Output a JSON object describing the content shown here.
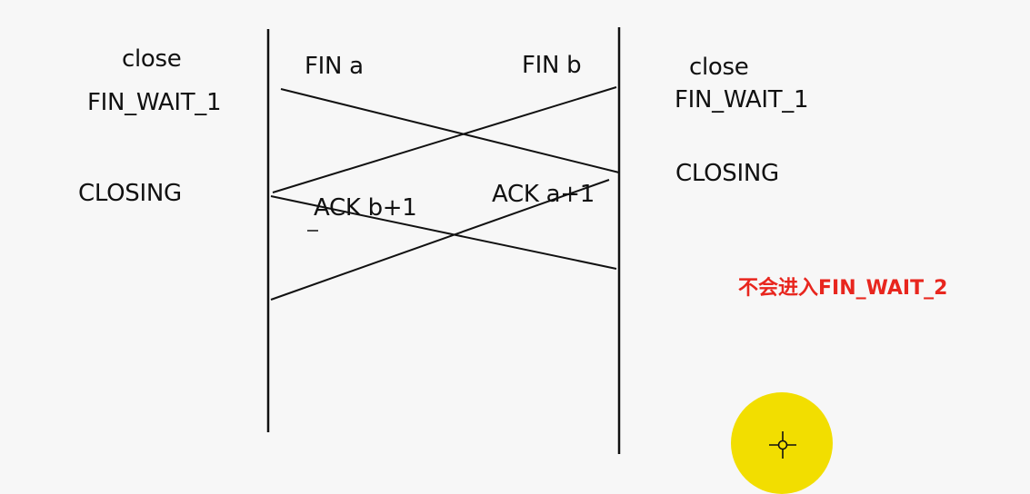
{
  "left_states": {
    "close": "close",
    "fin_wait_1": "FIN_WAIT_1",
    "closing": "CLOSING"
  },
  "right_states": {
    "close": "close",
    "fin_wait_1": "FIN_WAIT_1",
    "closing": "CLOSING"
  },
  "messages": {
    "fin_a": "FIN  a",
    "fin_b": "FIN  b",
    "ack_b": "ACK b+1",
    "ack_a": "ACK a+1"
  },
  "note": {
    "text": "不会进入FIN_WAIT_2",
    "color": "#e8261e"
  },
  "cursor": {
    "highlight_color": "#f2de00",
    "icon": "crosshair-cursor-icon"
  }
}
